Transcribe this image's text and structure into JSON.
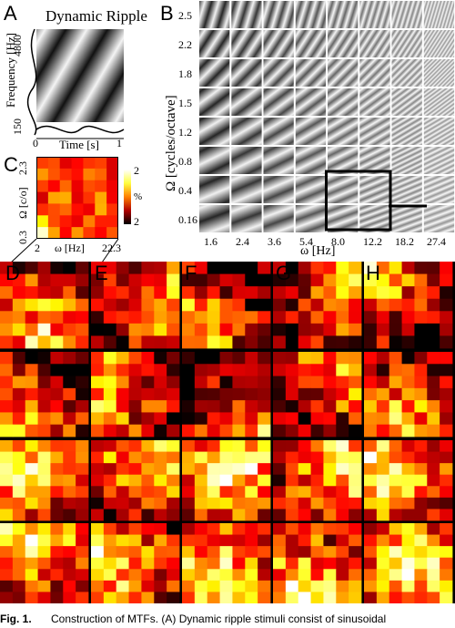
{
  "panels": {
    "A": {
      "label": "A",
      "title": "Dynamic Ripple",
      "ylabel": "Frequency [Hz]",
      "ytick_top": "4800",
      "ytick_bottom": "150",
      "xlabel": "Time [s]",
      "xtick_left": "0",
      "xtick_right": "1"
    },
    "B": {
      "label": "B",
      "ylabel": "Ω [cycles/octave]",
      "xlabel": "ω [Hz]",
      "yticks": [
        "2.5",
        "2.2",
        "1.8",
        "1.5",
        "1.2",
        "0.8",
        "0.4",
        "0.16"
      ],
      "xticks": [
        "1.6",
        "2.4",
        "3.6",
        "5.4",
        "8.0",
        "12.2",
        "18.2",
        "27.4"
      ]
    },
    "C": {
      "label": "C",
      "ylabel": "Ω [c/o]",
      "ytick_top": "2.3",
      "ytick_bottom": "0.3",
      "xlabel": "ω [Hz]",
      "xtick_left": "2",
      "xtick_right": "22.3",
      "colorbar_max": "2",
      "colorbar_min": "2",
      "colorbar_unit": "%"
    },
    "grid_labels": [
      "D",
      "E",
      "F",
      "G",
      "H"
    ]
  },
  "caption": {
    "fig": "Fig. 1.",
    "text": "Construction of MTFs. (A) Dynamic ripple stimuli consist of sinusoidal"
  },
  "colors": {
    "hot_black": "#000000",
    "hot_red": "#b00000",
    "hot_orange": "#ff8000",
    "hot_yellow": "#ffff40",
    "hot_white": "#ffffff",
    "highlight_box": "#000000"
  }
}
